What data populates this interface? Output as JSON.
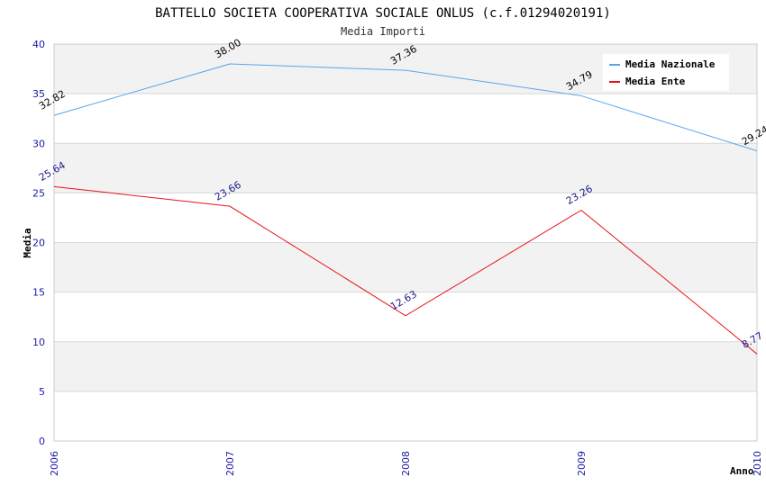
{
  "chart_data": {
    "type": "line",
    "title": "BATTELLO SOCIETA COOPERATIVA SOCIALE ONLUS (c.f.01294020191)",
    "subtitle": "Media Importi",
    "xlabel": "Anno",
    "ylabel": "Media",
    "categories": [
      "2006",
      "2007",
      "2008",
      "2009",
      "2010"
    ],
    "ylim": [
      0,
      40
    ],
    "yticks": [
      "0",
      "5",
      "10",
      "15",
      "20",
      "25",
      "30",
      "35",
      "40"
    ],
    "grid": true,
    "legend_position": "top-right",
    "series": [
      {
        "name": "Media Nazionale",
        "color": "#5aa5ea",
        "label_color": "#000000",
        "values": [
          32.82,
          38.0,
          37.36,
          34.79,
          29.24
        ],
        "labels": [
          "32.82",
          "38.00",
          "37.36",
          "34.79",
          "29.24"
        ]
      },
      {
        "name": "Media Ente",
        "color": "#e8121b",
        "label_color": "#1a1a8c",
        "values": [
          25.64,
          23.66,
          12.63,
          23.26,
          8.77
        ],
        "labels": [
          "25.64",
          "23.66",
          "12.63",
          "23.26",
          "8.77"
        ]
      }
    ]
  },
  "colors": {
    "band": "#f2f2f2",
    "gridline": "#d8d8d8",
    "tick_text": "#1a1aa8",
    "title_text": "#000000",
    "subtitle_text": "#333333"
  }
}
